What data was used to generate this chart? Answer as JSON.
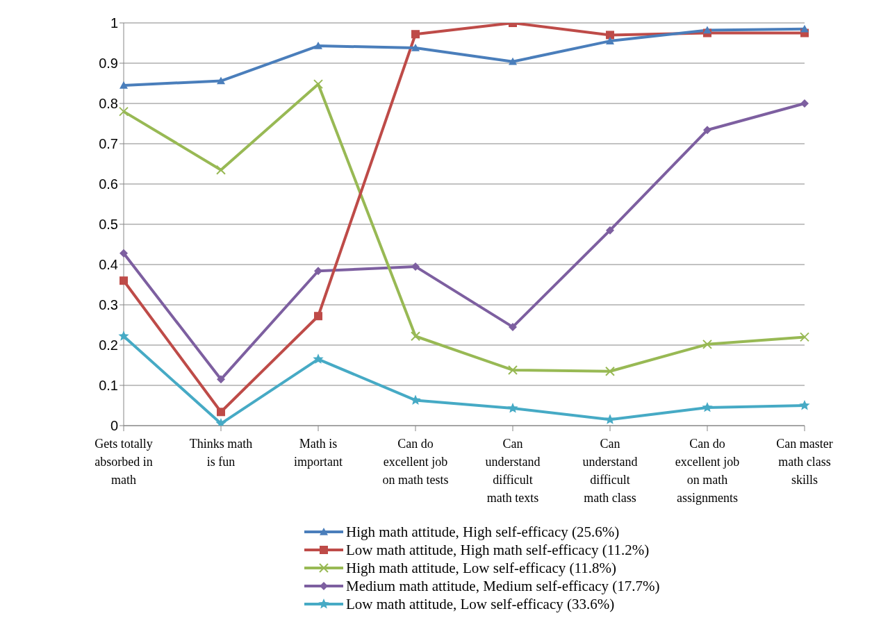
{
  "chart_data": {
    "type": "line",
    "categories": [
      "Gets totally absorbed in math",
      "Thinks math is fun",
      "Math is important",
      "Can do excellent job on math tests",
      "Can understand difficult math texts",
      "Can understand difficult math class",
      "Can do excellent job on math assignments",
      "Can master math class skills"
    ],
    "series": [
      {
        "name": "High math attitude, High self-efficacy (25.6%)",
        "color": "#4a7ebb",
        "marker": "triangle",
        "values": [
          0.845,
          0.856,
          0.943,
          0.938,
          0.904,
          0.955,
          0.982,
          0.985
        ]
      },
      {
        "name": "Low math attitude, High math self-efficacy (11.2%)",
        "color": "#be4b48",
        "marker": "square",
        "values": [
          0.36,
          0.034,
          0.272,
          0.972,
          1.0,
          0.97,
          0.975,
          0.975
        ]
      },
      {
        "name": "High math attitude, Low self-efficacy (11.8%)",
        "color": "#98b954",
        "marker": "cross",
        "values": [
          0.78,
          0.635,
          0.848,
          0.222,
          0.138,
          0.135,
          0.202,
          0.22
        ]
      },
      {
        "name": "Medium math attitude, Medium self-efficacy (17.7%)",
        "color": "#7d5fa0",
        "marker": "diamond",
        "values": [
          0.428,
          0.115,
          0.384,
          0.395,
          0.245,
          0.485,
          0.734,
          0.8
        ]
      },
      {
        "name": "Low math attitude, Low self-efficacy (33.6%)",
        "color": "#46aac5",
        "marker": "star",
        "values": [
          0.222,
          0.005,
          0.165,
          0.063,
          0.043,
          0.015,
          0.045,
          0.05
        ]
      }
    ],
    "ylim": [
      0,
      1
    ],
    "yticks": [
      0,
      0.1,
      0.2,
      0.3,
      0.4,
      0.5,
      0.6,
      0.7,
      0.8,
      0.9,
      1
    ],
    "grid": "y",
    "legend": "bottom",
    "line_style": "solid"
  }
}
